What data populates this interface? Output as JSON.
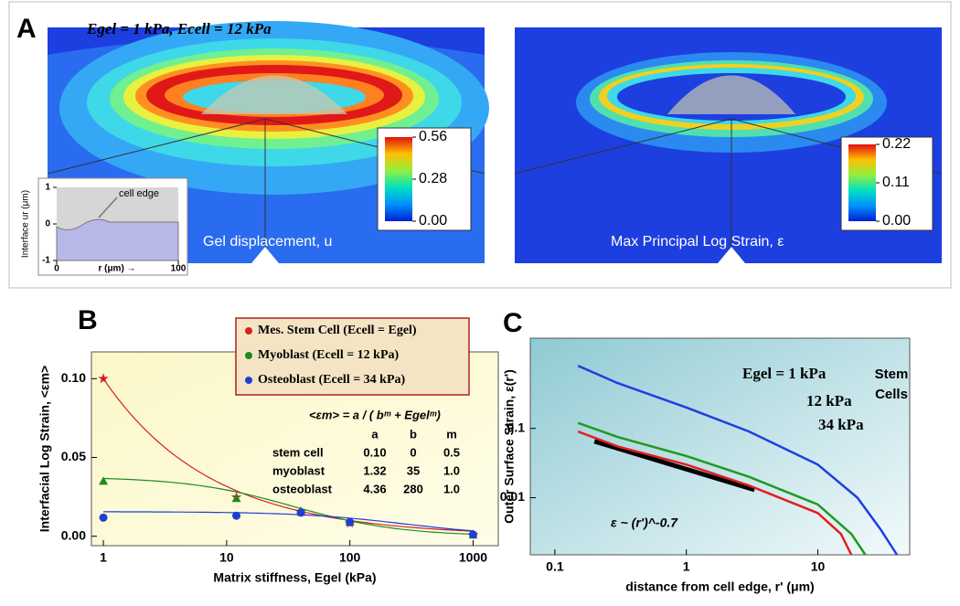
{
  "panel_a": {
    "label": "A",
    "condition": "Egel = 1 kPa, Ecell = 12 kPa",
    "left": {
      "caption": "Gel displacement, u",
      "colorbar": {
        "lim": [
          0,
          0.56
        ],
        "ticks": [
          0.56,
          0.28,
          {
            "value": 0,
            "label": "0.00"
          }
        ]
      }
    },
    "right": {
      "caption": "Max Principal Log Strain, ε",
      "colorbar": {
        "lim": [
          0,
          0.22
        ],
        "ticks": [
          0.22,
          0.11,
          {
            "value": 0,
            "label": "0.00"
          }
        ]
      }
    },
    "inset": {
      "ylabel": "Interface ur (μm)",
      "ylim": [
        -1,
        1
      ],
      "yticks": [
        1,
        0,
        -1
      ],
      "xlim": [
        0,
        100
      ],
      "xticks": [
        0,
        100
      ],
      "xlabel": "r (μm) →",
      "annotation": "cell edge"
    }
  },
  "chart_data": [
    {
      "type": "scatter",
      "panel_label": "B",
      "xlabel": "Matrix stiffness, Egel (kPa)",
      "ylabel": "Interfacial Log Strain, <εm>",
      "xscale": "log",
      "xlim": [
        0.8,
        1600
      ],
      "xticks": [
        1,
        10,
        100,
        1000
      ],
      "ylim": [
        -0.006,
        0.117
      ],
      "yticks": [
        {
          "value": 0,
          "label": "0.00"
        },
        {
          "value": 0.05,
          "label": "0.05"
        },
        {
          "value": 0.1,
          "label": "0.10"
        }
      ],
      "legend": "top right",
      "series": [
        {
          "name": "Mes. Stem Cell (Ecell = Egel)",
          "color": "#d62020",
          "marker": "star",
          "x": [
            1,
            12,
            40,
            100,
            1000
          ],
          "values": [
            0.1,
            0.0247,
            0.0153,
            0.0082,
            0.001
          ]
        },
        {
          "name": "Myoblast (Ecell = 12 kPa)",
          "color": "#1f8a1f",
          "marker": "triangle",
          "x": [
            1,
            12,
            40,
            100,
            1000
          ],
          "values": [
            0.035,
            0.024,
            0.016,
            0.009,
            0.001
          ]
        },
        {
          "name": "Osteoblast (Ecell = 34 kPa)",
          "color": "#1f3fd0",
          "marker": "circle",
          "x": [
            1,
            12,
            40,
            100,
            1000
          ],
          "values": [
            0.0118,
            0.013,
            0.015,
            0.009,
            0.001
          ]
        }
      ],
      "fit": {
        "formula": "<εm> = a / ( bᵐ + Egelᵐ)",
        "columns": [
          "a",
          "b",
          "m"
        ],
        "rows": [
          [
            "stem cell",
            "0.10",
            "0",
            "0.5"
          ],
          [
            "myoblast",
            "1.32",
            "35",
            "1.0"
          ],
          [
            "osteoblast",
            "4.36",
            "280",
            "1.0"
          ]
        ]
      }
    },
    {
      "type": "line",
      "panel_label": "C",
      "xlabel": "distance from cell edge, r' (μm)",
      "ylabel": "Outer Surface Strain, ε(r')",
      "xscale": "log",
      "yscale": "log",
      "xlim": [
        0.065,
        50
      ],
      "xticks": [
        0.1,
        1,
        10
      ],
      "ylim": [
        0.0015,
        2
      ],
      "yticks": [
        0.1,
        0.01
      ],
      "note": [
        "Stem",
        "Cells"
      ],
      "series": [
        {
          "name": "Egel = 1 kPa",
          "color": "#1f3fe0",
          "x": [
            0.15,
            0.3,
            1,
            3,
            10,
            20,
            30,
            40
          ],
          "values": [
            0.8,
            0.45,
            0.2,
            0.09,
            0.03,
            0.01,
            0.0035,
            0.0015
          ]
        },
        {
          "name": "12 kPa",
          "color": "#1f9a1f",
          "x": [
            0.15,
            0.3,
            1,
            3,
            10,
            18,
            23
          ],
          "values": [
            0.12,
            0.075,
            0.04,
            0.02,
            0.008,
            0.003,
            0.0015
          ]
        },
        {
          "name": "34 kPa",
          "color": "#e02020",
          "x": [
            0.15,
            0.3,
            1,
            3,
            10,
            15,
            18
          ],
          "values": [
            0.09,
            0.055,
            0.03,
            0.015,
            0.006,
            0.003,
            0.0015
          ]
        }
      ],
      "guide": {
        "label": "ε ~ (r')^-0.7",
        "x": [
          0.2,
          3.3
        ],
        "values": [
          0.065,
          0.013
        ]
      }
    }
  ]
}
